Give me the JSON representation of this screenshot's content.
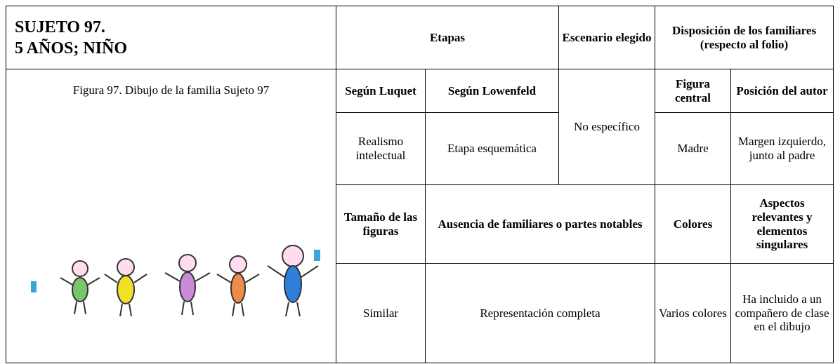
{
  "header": {
    "subject": "SUJETO 97.",
    "age": "5 AÑOS; NIÑO",
    "etapas": "Etapas",
    "escenario": "Escenario elegido",
    "disposicion": "Disposición de los familiares",
    "disposicion_note": "(respecto al folio)"
  },
  "figure": {
    "caption": "Figura 97. Dibujo de la familia Sujeto 97"
  },
  "table": {
    "subheaders": {
      "luquet": "Según Luquet",
      "lowenfeld": "Según Lowenfeld",
      "figura_central": "Figura central",
      "posicion_autor": "Posición del autor"
    },
    "row1": {
      "luquet": "Realismo intelectual",
      "lowenfeld": "Etapa esquemática",
      "escenario": "No específico",
      "figura_central": "Madre",
      "posicion_autor": "Margen izquierdo, junto al padre"
    },
    "subheaders2": {
      "tamano": "Tamaño de las figuras",
      "ausencia": "Ausencia de familiares o partes notables",
      "colores": "Colores",
      "aspectos": "Aspectos relevantes y elementos singulares"
    },
    "row2": {
      "tamano": "Similar",
      "ausencia": "Representación completa",
      "colores": "Varios colores",
      "aspectos": "Ha incluido a un compañero de clase en el dibujo"
    }
  }
}
